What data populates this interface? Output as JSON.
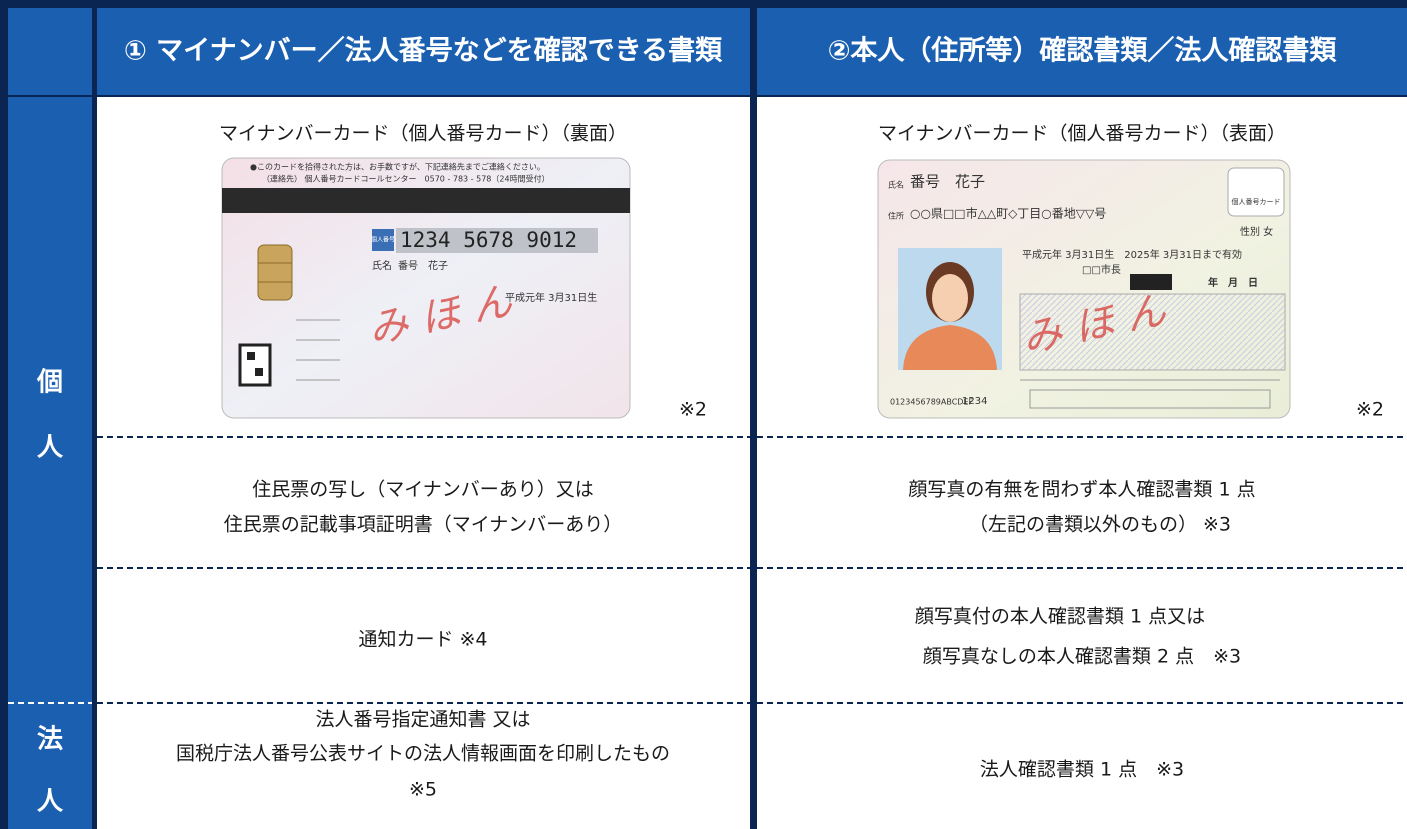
{
  "header": {
    "columns": [
      "① マイナンバー／法人番号などを確認できる書類",
      "②本人（住所等）確認書類／法人確認書類"
    ]
  },
  "sections": [
    {
      "label": [
        "個",
        "人"
      ]
    },
    {
      "label": [
        "法",
        "人"
      ]
    }
  ],
  "rows": [
    [
      {
        "lines": [
          "マイナンバーカード（個人番号カード）（裏面）"
        ],
        "note": "※2",
        "card": {
          "notice": [
            "●このカードを拾得された方は、お手数ですが、下記連絡先までご連絡ください。",
            "（連絡先） 個人番号カードコールセンター　0570 - 783 - 578（24時間受付）"
          ],
          "number_label": "個人番号",
          "number": "1234 5678 9012",
          "name_label": "氏名",
          "name": "番号　花子",
          "birth": "平成元年 3月31日生",
          "sample": "み ほ ん"
        }
      },
      {
        "lines": [
          "マイナンバーカード（個人番号カード）（表面）"
        ],
        "note": "※2",
        "card": {
          "name_label": "氏名",
          "name": "番号　花子",
          "address_label": "住所",
          "address": "○○県□□市△△町◇丁目○番地▽▽号",
          "badge": "個人番号カード",
          "sex": "性別 女",
          "validity": "平成元年 3月31日生　2025年 3月31日まで有効",
          "issuer": "□□市長",
          "date": "年　月　日",
          "serial": "0123456789ABCDEF",
          "code": "1234",
          "sample": "み ほ ん"
        }
      }
    ],
    [
      {
        "lines": [
          "住民票の写し（マイナンバーあり）又は",
          "住民票の記載事項証明書（マイナンバーあり）"
        ]
      },
      {
        "lines": [
          "顔写真の有無を問わず本人確認書類 1 点",
          "（左記の書類以外のもの） ※3"
        ]
      }
    ],
    [
      {
        "lines": [
          "通知カード ※4"
        ]
      },
      {
        "lines": [
          "顔写真付の本人確認書類 1 点又は",
          "顔写真なしの本人確認書類 2 点　※3"
        ]
      }
    ],
    [
      {
        "lines": [
          "法人番号指定通知書 又は",
          "国税庁法人番号公表サイトの法人情報画面を印刷したもの",
          "※5"
        ]
      },
      {
        "lines": [
          "法人確認書類 1 点　※3"
        ]
      }
    ]
  ]
}
